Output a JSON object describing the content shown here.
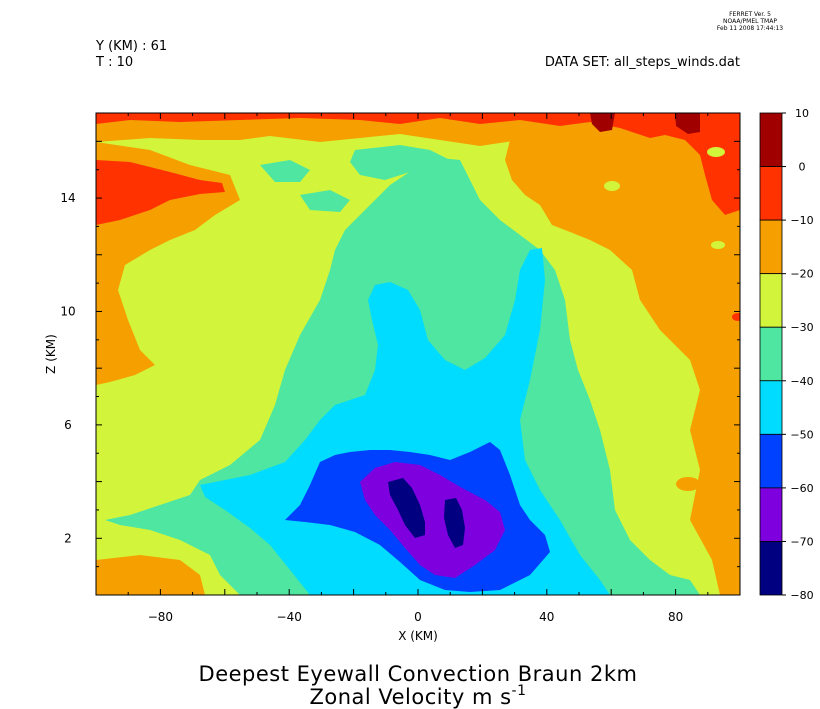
{
  "header": {
    "software": "FERRET Ver. 5",
    "org": "NOAA/PMEL TMAP",
    "timestamp": "Feb 11 2008 17:44:13",
    "y_slice": "Y (KM) : 61",
    "t_slice": "T : 10",
    "dataset": "DATA SET: all_steps_winds.dat"
  },
  "chart_data": {
    "type": "contour",
    "title": "Deepest Eyewall Convection Braun 2km",
    "subtitle_text": "Zonal Velocity m s",
    "subtitle_exponent": "-1",
    "xlabel": "X (KM)",
    "ylabel": "Z (KM)",
    "xlim": [
      -100,
      100
    ],
    "ylim": [
      0,
      17
    ],
    "x_ticks": [
      -80,
      -40,
      0,
      40,
      80
    ],
    "y_ticks": [
      2,
      6,
      10,
      14
    ],
    "colorbar": {
      "levels": [
        -80,
        -70,
        -60,
        -50,
        -40,
        -30,
        -20,
        -10,
        0,
        10
      ],
      "colors": [
        "#000080",
        "#7f00df",
        "#0040ff",
        "#00dcff",
        "#4ee6a0",
        "#d2f53c",
        "#f5a000",
        "#ff3200",
        "#a00000"
      ]
    }
  }
}
